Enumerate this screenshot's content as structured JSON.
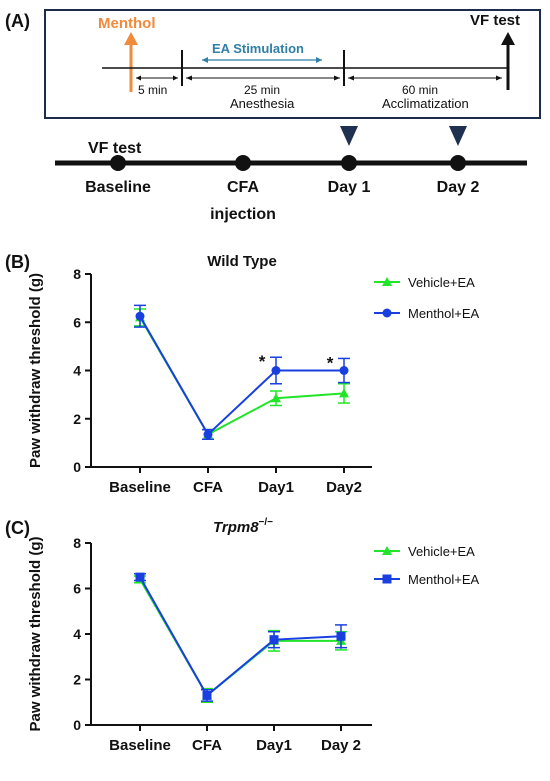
{
  "panel_a": {
    "label": "(A)",
    "menthol": "Menthol",
    "ea_stimulation": "EA Stimulation",
    "vf_test_top": "VF test",
    "five_min": "5 min",
    "twenty_five_min": "25 min",
    "anesthesia": "Anesthesia",
    "sixty_min": "60 min",
    "acclimatization": "Acclimatization",
    "vf_test_timeline": "VF test",
    "baseline": "Baseline",
    "cfa_line1": "CFA",
    "cfa_line2": "injection",
    "day1": "Day 1",
    "day2": "Day 2",
    "colors": {
      "menthol": "#f08a3c",
      "ea": "#2f7fa6",
      "box": "#1c2c4c",
      "marker": "#1f3050"
    }
  },
  "chart_data": [
    {
      "type": "line",
      "panel_label": "(B)",
      "title": "Wild Type",
      "ylabel": "Paw withdraw threshold (g)",
      "categories": [
        "Baseline",
        "CFA",
        "Day1",
        "Day2"
      ],
      "ylim": [
        0,
        8
      ],
      "yticks": [
        "0",
        "2",
        "4",
        "6",
        "8"
      ],
      "legend_position": "top-right",
      "series": [
        {
          "name": "Vehicle+EA",
          "marker": "triangle",
          "color": "#22e52a",
          "values": [
            6.2,
            1.35,
            2.85,
            3.05
          ],
          "errors": [
            0.35,
            0.2,
            0.3,
            0.4
          ]
        },
        {
          "name": "Menthol+EA",
          "marker": "circle",
          "color": "#1a3fe0",
          "values": [
            6.25,
            1.35,
            4.0,
            4.0
          ],
          "errors": [
            0.45,
            0.2,
            0.55,
            0.5
          ]
        }
      ],
      "annotations": [
        {
          "category": "Day1",
          "text": "*"
        },
        {
          "category": "Day2",
          "text": "*"
        }
      ]
    },
    {
      "type": "line",
      "panel_label": "(C)",
      "title": "Trpm8",
      "title_superscript": "−/−",
      "ylabel": "Paw withdraw threshold (g)",
      "categories": [
        "Baseline",
        "CFA",
        "Day1",
        "Day 2"
      ],
      "ylim": [
        0,
        8
      ],
      "yticks": [
        "0",
        "2",
        "4",
        "6",
        "8"
      ],
      "legend_position": "top-right",
      "series": [
        {
          "name": "Vehicle+EA",
          "marker": "triangle",
          "color": "#22e52a",
          "values": [
            6.4,
            1.3,
            3.7,
            3.7
          ],
          "errors": [
            0.15,
            0.3,
            0.45,
            0.4
          ]
        },
        {
          "name": "Menthol+EA",
          "marker": "square",
          "color": "#1a3fe0",
          "values": [
            6.5,
            1.3,
            3.75,
            3.9
          ],
          "errors": [
            0.15,
            0.25,
            0.35,
            0.5
          ]
        }
      ]
    }
  ]
}
